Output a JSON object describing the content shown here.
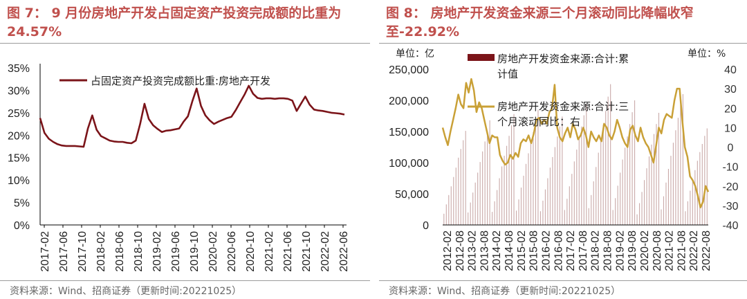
{
  "left": {
    "title": "图 7： 9 月份房地产开发占固定资产投资完成额的比重为 24.57%",
    "source": "资料来源：Wind、招商证券（更新时间:20221025）",
    "chart_data": {
      "type": "line",
      "series": [
        {
          "name": "占固定资产投资完成额比重:房地产开发",
          "color": "#7b1419",
          "values": [
            23.8,
            20.5,
            19.2,
            18.5,
            18.0,
            17.7,
            17.6,
            17.6,
            17.6,
            17.5,
            17.4,
            21.5,
            24.4,
            21.2,
            19.8,
            19.3,
            18.8,
            18.6,
            18.5,
            18.5,
            18.3,
            18.2,
            18.8,
            22.5,
            27.0,
            23.6,
            22.2,
            21.4,
            20.7,
            21.0,
            21.1,
            21.3,
            21.5,
            23.0,
            24.2,
            27.5,
            30.4,
            26.5,
            24.4,
            23.3,
            22.5,
            23.0,
            23.4,
            23.8,
            24.1,
            25.6,
            27.3,
            29.0,
            31.0,
            29.2,
            28.3,
            28.1,
            28.2,
            28.2,
            28.1,
            28.2,
            28.2,
            28.1,
            27.7,
            25.4,
            27.0,
            28.6,
            26.8,
            25.7,
            25.5,
            25.4,
            25.2,
            25.0,
            24.9,
            24.8,
            24.6
          ]
        }
      ],
      "x_tick_labels": [
        "2017-02",
        "2017-06",
        "2017-10",
        "2018-02",
        "2018-06",
        "2018-10",
        "2019-02",
        "2019-06",
        "2019-10",
        "2020-02",
        "2020-06",
        "2020-10",
        "2021-02",
        "2021-06",
        "2021-10",
        "2022-02",
        "2022-06"
      ],
      "y_tick_labels": [
        "0%",
        "5%",
        "10%",
        "15%",
        "20%",
        "25%",
        "30%",
        "35%"
      ],
      "ylim": [
        0,
        35
      ],
      "legend_position": "top"
    }
  },
  "right": {
    "title": "图 8： 房地产开发资金来源三个月滚动同比降幅收窄至-22.92%",
    "source": "资料来源：Wind、招商证券（更新时间:20221025）",
    "left_unit": "单位：亿",
    "right_unit": "单位：%",
    "chart_data": {
      "type": "bar",
      "series": [
        {
          "name": "房地产开发资金来源:合计:累计值",
          "axis": "left",
          "color": "#7b1419",
          "values": [
            18000,
            33000,
            48000,
            62000,
            77000,
            92000,
            108000,
            122000,
            136000,
            151000,
            20000,
            36000,
            52000,
            68000,
            84000,
            101000,
            118000,
            134000,
            150000,
            168000,
            21000,
            38000,
            56000,
            75000,
            94000,
            111000,
            127000,
            143000,
            160000,
            178000,
            23000,
            41000,
            60000,
            79000,
            98000,
            115000,
            131000,
            149000,
            166000,
            185000,
            22000,
            39000,
            57000,
            75000,
            92000,
            109000,
            125000,
            142000,
            158000,
            174000,
            24000,
            42000,
            62000,
            82000,
            102000,
            121000,
            140000,
            158000,
            176000,
            194000,
            27000,
            48000,
            70000,
            93000,
            116000,
            139000,
            161000,
            183000,
            206000,
            226000,
            24000,
            43000,
            63000,
            84000,
            105000,
            124000,
            142000,
            162000,
            181000,
            200000,
            17000,
            35000,
            53000,
            72000,
            91000,
            110000,
            129000,
            146000,
            162000,
            180000,
            25000,
            46000,
            68000,
            90000,
            111000,
            132000,
            152000,
            172000,
            192000,
            210000,
            22000,
            38000,
            55000,
            72000,
            88000,
            103000,
            117000,
            130000,
            143000,
            155000
          ]
        },
        {
          "name": "房地产开发资金来源:合计:三个月滚动同比：右",
          "axis": "right",
          "type": "line",
          "color": "#c9a036",
          "values": [
            10,
            5,
            1,
            8,
            14,
            20,
            27,
            22,
            20,
            33,
            28,
            35,
            29,
            18,
            23,
            20,
            14,
            8,
            2,
            6,
            5,
            5,
            -4,
            -7,
            -9,
            -8,
            -4,
            -6,
            -3,
            -5,
            2,
            4,
            3,
            6,
            2,
            7,
            14,
            15,
            12,
            14,
            12,
            18,
            20,
            32,
            10,
            5,
            3,
            7,
            10,
            5,
            12,
            9,
            4,
            6,
            10,
            6,
            0,
            8,
            5,
            3,
            6,
            3,
            12,
            10,
            6,
            4,
            8,
            14,
            10,
            5,
            2,
            0,
            9,
            11,
            6,
            3,
            10,
            5,
            2,
            0,
            -4,
            -8,
            1,
            10,
            7,
            14,
            17,
            16,
            15,
            24,
            30,
            30,
            14,
            0,
            -5,
            -15,
            -17,
            -20,
            -25,
            -31,
            -28,
            -20,
            -23
          ]
        }
      ],
      "x_tick_labels": [
        "2012-02",
        "2012-08",
        "2013-02",
        "2013-08",
        "2014-02",
        "2014-08",
        "2015-02",
        "2015-08",
        "2016-02",
        "2016-08",
        "2017-02",
        "2017-08",
        "2018-02",
        "2018-08",
        "2019-02",
        "2019-08",
        "2020-02",
        "2020-08",
        "2021-02",
        "2021-08",
        "2022-02",
        "2022-08"
      ],
      "y_left_tick_labels": [
        "0",
        "50,000",
        "100,000",
        "150,000",
        "200,000",
        "250,000"
      ],
      "y_right_tick_labels": [
        "-40",
        "-30",
        "-20",
        "-10",
        "0",
        "10",
        "20",
        "30",
        "40"
      ],
      "ylim_left": [
        0,
        250000
      ],
      "ylim_right": [
        -40,
        40
      ],
      "legend_position": "top"
    }
  }
}
